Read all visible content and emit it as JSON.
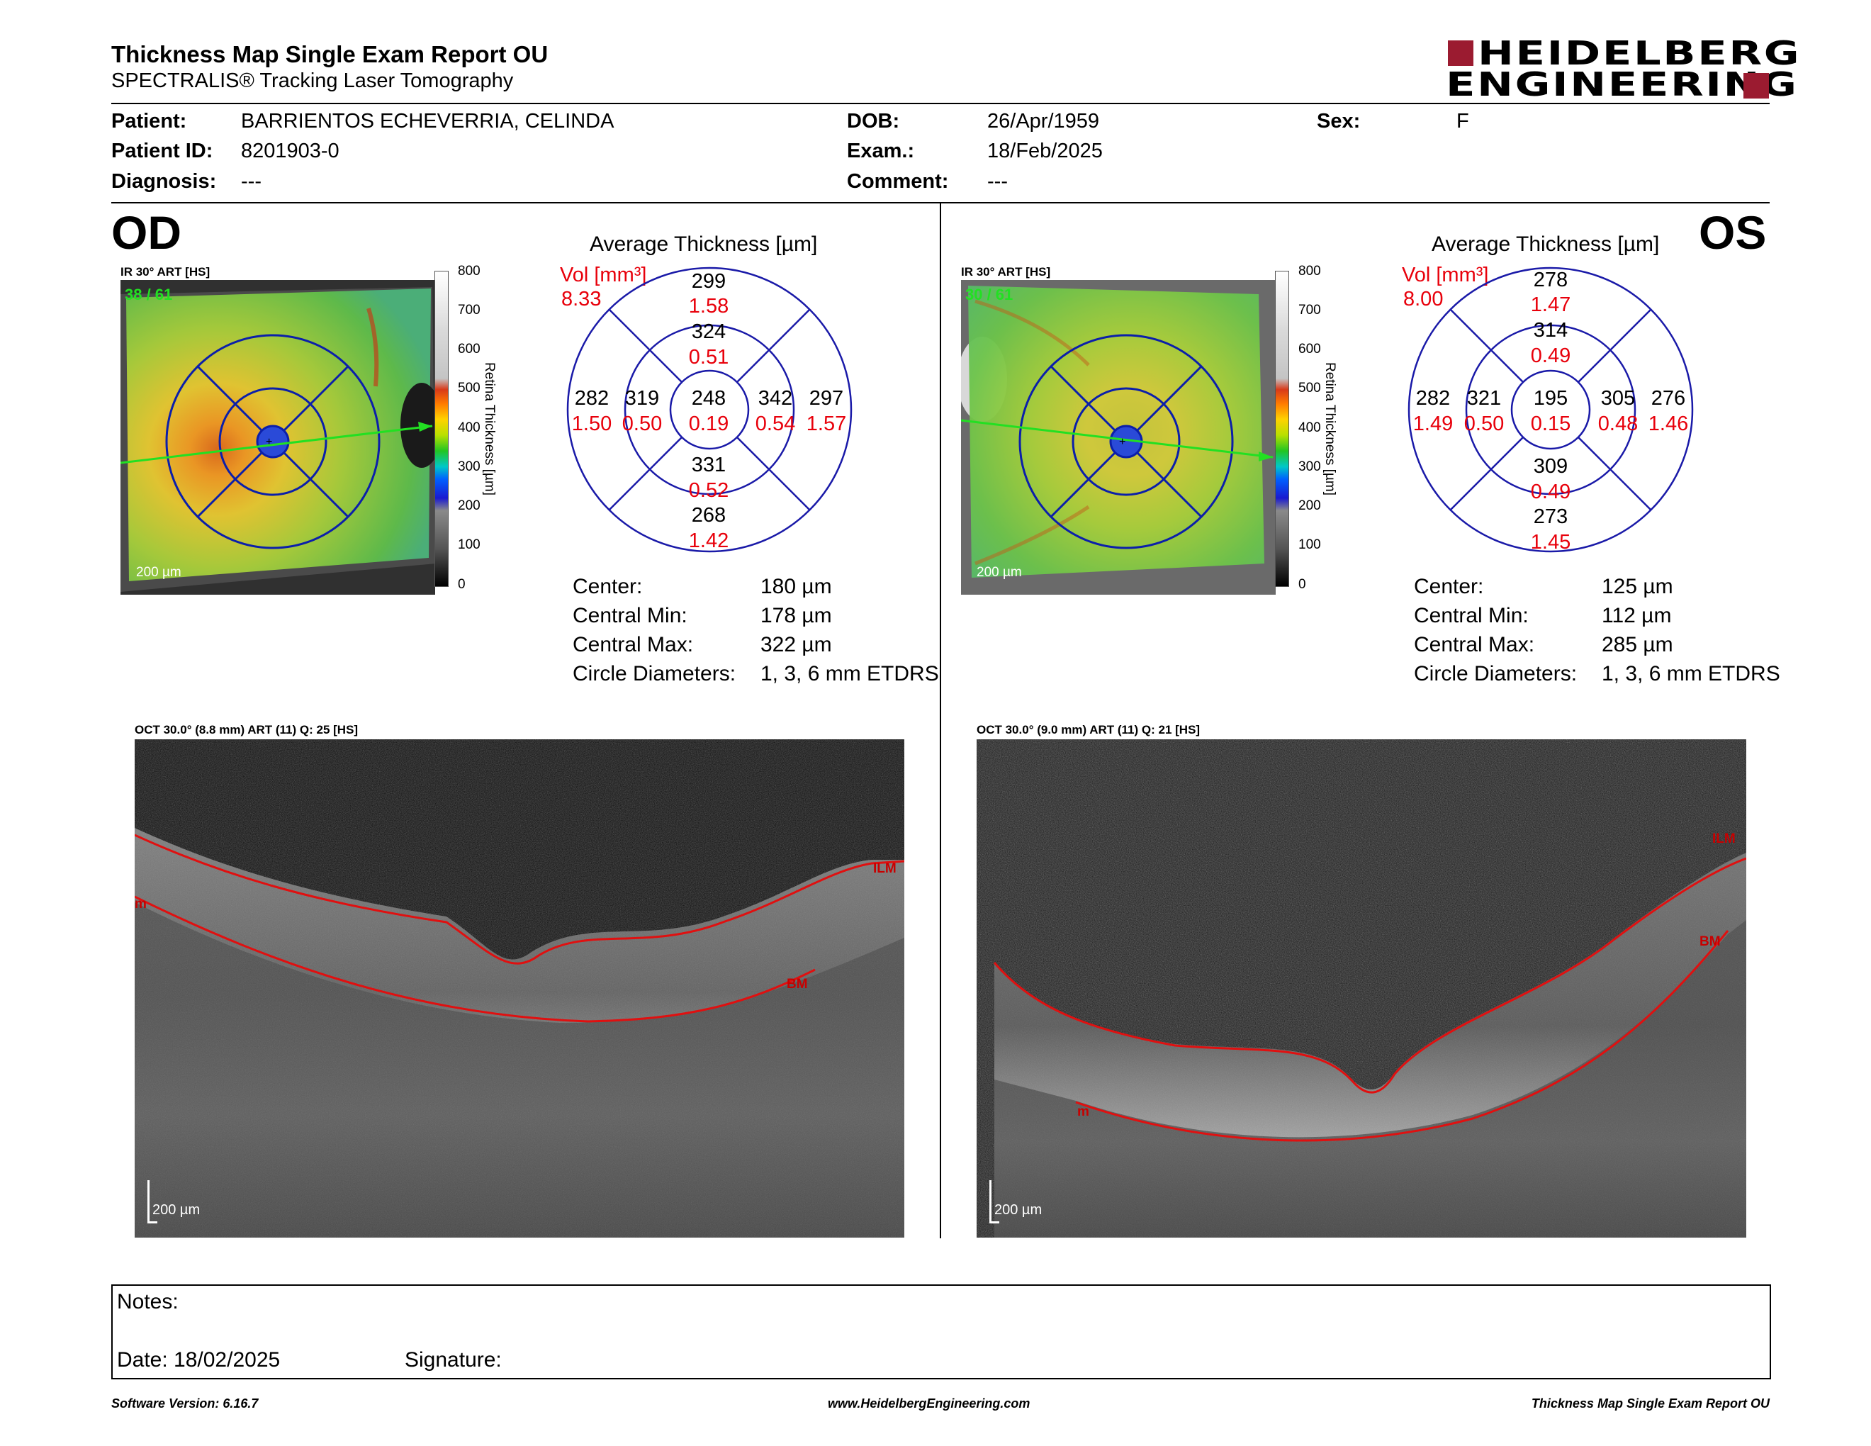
{
  "report": {
    "title": "Thickness Map Single Exam Report OU",
    "subtitle": "SPECTRALIS® Tracking Laser Tomography",
    "logo_line1": "HEIDELBERG",
    "logo_line2": "ENGINEERING"
  },
  "patient": {
    "patient_label": "Patient:",
    "patient_name": "BARRIENTOS ECHEVERRIA, CELINDA",
    "id_label": "Patient ID:",
    "id": "8201903-0",
    "diagnosis_label": "Diagnosis:",
    "diagnosis": "---",
    "dob_label": "DOB:",
    "dob": "26/Apr/1959",
    "exam_label": "Exam.:",
    "exam": "18/Feb/2025",
    "comment_label": "Comment:",
    "comment": "---",
    "sex_label": "Sex:",
    "sex": "F"
  },
  "colorbar": {
    "title": "Retina Thickness [µm]",
    "ticks": [
      "800",
      "700",
      "600",
      "500",
      "400",
      "300",
      "200",
      "100",
      "0"
    ]
  },
  "od": {
    "eye": "OD",
    "ir_label": "IR 30° ART [HS]",
    "frames": "38 / 61",
    "scale": "200 µm",
    "avg_title": "Average Thickness [µm]",
    "vol_label": "Vol [mm³]",
    "vol_total": "8.33",
    "sectors": {
      "outer_sup": {
        "t": "299",
        "v": "1.58"
      },
      "inner_sup": {
        "t": "324",
        "v": "0.51"
      },
      "outer_left": {
        "t": "282",
        "v": "1.50"
      },
      "inner_left": {
        "t": "319",
        "v": "0.50"
      },
      "center": {
        "t": "248",
        "v": "0.19"
      },
      "inner_right": {
        "t": "342",
        "v": "0.54"
      },
      "outer_right": {
        "t": "297",
        "v": "1.57"
      },
      "inner_inf": {
        "t": "331",
        "v": "0.52"
      },
      "outer_inf": {
        "t": "268",
        "v": "1.42"
      }
    },
    "stats": [
      {
        "label": "Center:",
        "value": "180 µm"
      },
      {
        "label": "Central Min:",
        "value": "178 µm"
      },
      {
        "label": "Central Max:",
        "value": "322 µm"
      },
      {
        "label": "Circle Diameters:",
        "value": "1, 3, 6 mm ETDRS"
      }
    ],
    "oct_label": "OCT 30.0° (8.8 mm) ART (11) Q: 25 [HS]",
    "oct_scale": "200 µm",
    "ilm": "ILM",
    "bm": "BM",
    "m": "m"
  },
  "os": {
    "eye": "OS",
    "ir_label": "IR 30° ART [HS]",
    "frames": "30 / 61",
    "scale": "200 µm",
    "avg_title": "Average Thickness [µm]",
    "vol_label": "Vol [mm³]",
    "vol_total": "8.00",
    "sectors": {
      "outer_sup": {
        "t": "278",
        "v": "1.47"
      },
      "inner_sup": {
        "t": "314",
        "v": "0.49"
      },
      "outer_left": {
        "t": "282",
        "v": "1.49"
      },
      "inner_left": {
        "t": "321",
        "v": "0.50"
      },
      "center": {
        "t": "195",
        "v": "0.15"
      },
      "inner_right": {
        "t": "305",
        "v": "0.48"
      },
      "outer_right": {
        "t": "276",
        "v": "1.46"
      },
      "inner_inf": {
        "t": "309",
        "v": "0.49"
      },
      "outer_inf": {
        "t": "273",
        "v": "1.45"
      }
    },
    "stats": [
      {
        "label": "Center:",
        "value": "125 µm"
      },
      {
        "label": "Central Min:",
        "value": "112 µm"
      },
      {
        "label": "Central Max:",
        "value": "285 µm"
      },
      {
        "label": "Circle Diameters:",
        "value": "1, 3, 6 mm ETDRS"
      }
    ],
    "oct_label": "OCT 30.0° (9.0 mm) ART (11) Q: 21 [HS]",
    "oct_scale": "200 µm",
    "ilm": "ILM",
    "bm": "BM",
    "m": "m"
  },
  "notes": {
    "notes_label": "Notes:",
    "date_label": "Date: 18/02/2025",
    "signature_label": "Signature:"
  },
  "footer": {
    "left": "Software Version: 6.16.7",
    "center": "www.HeidelbergEngineering.com",
    "right": "Thickness Map Single Exam Report OU"
  }
}
